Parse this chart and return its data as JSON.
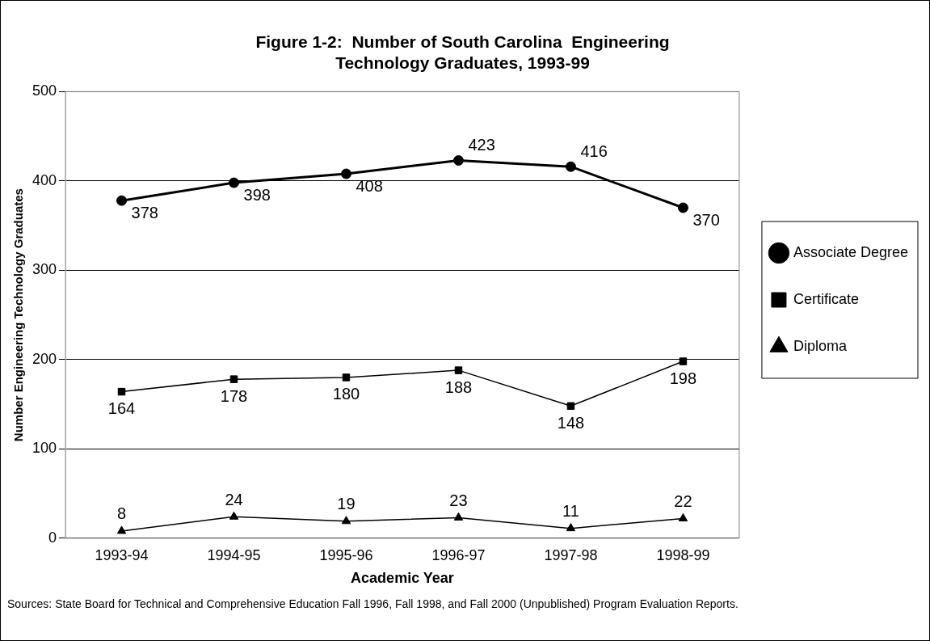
{
  "chart_data": {
    "type": "line",
    "title": "Figure 1-2:  Number of South Carolina  Engineering Technology Graduates, 1993-99",
    "xlabel": "Academic Year",
    "ylabel": "Number Engineering Technology Graduates",
    "categories": [
      "1993-94",
      "1994-95",
      "1995-96",
      "1996-97",
      "1997-98",
      "1998-99"
    ],
    "series": [
      {
        "name": "Associate Degree",
        "color": "#000000",
        "marker": "circle",
        "values": [
          378,
          398,
          408,
          423,
          416,
          370
        ]
      },
      {
        "name": "Certificate",
        "color": "#000000",
        "marker": "square",
        "values": [
          164,
          178,
          180,
          188,
          148,
          198
        ]
      },
      {
        "name": "Diploma",
        "color": "#000000",
        "marker": "triangle",
        "values": [
          8,
          24,
          19,
          23,
          11,
          22
        ]
      }
    ],
    "ylim": [
      0,
      500
    ],
    "yticks": [
      0,
      100,
      200,
      300,
      400,
      500
    ],
    "grid": "y",
    "legend": "right",
    "data_labels": true,
    "annotations": [
      "Sources:  State Board for Technical and Comprehensive Education Fall 1996, Fall 1998, and Fall 2000 (Unpublished) Program Evaluation Reports."
    ]
  }
}
